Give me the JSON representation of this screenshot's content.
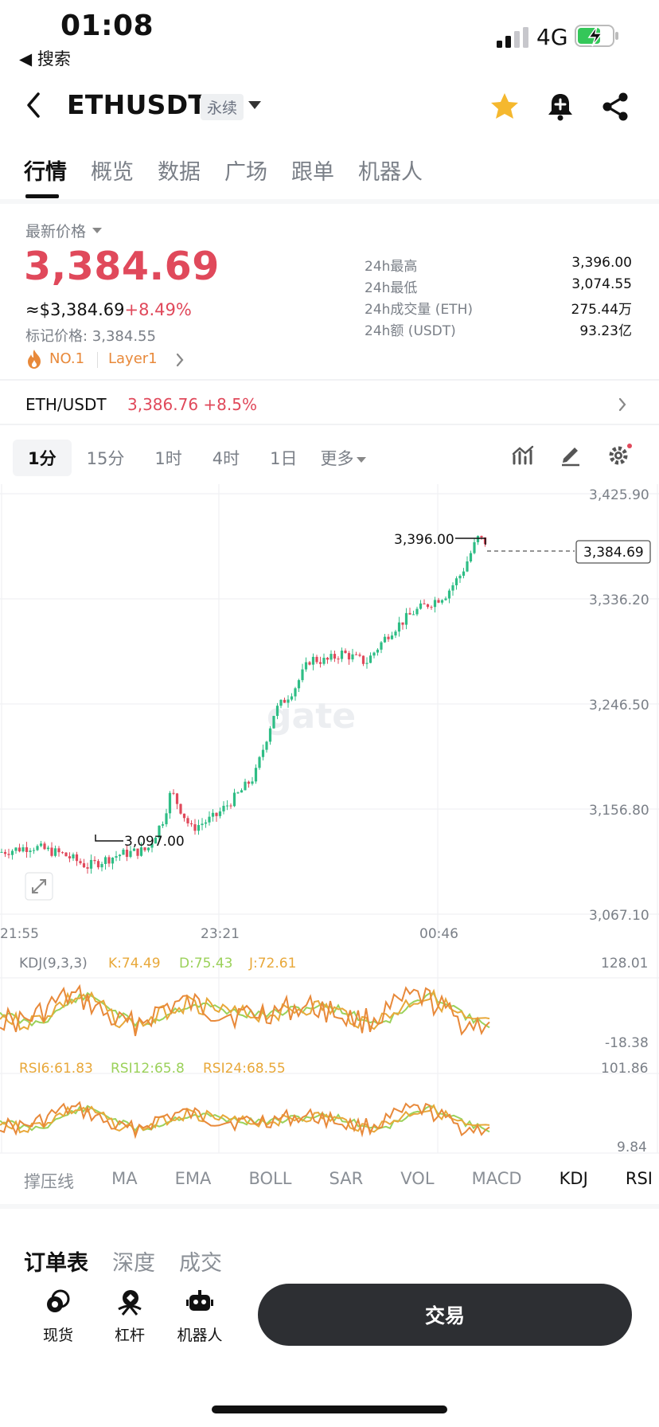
{
  "status": {
    "time": "01:08",
    "back_label": "◀ 搜索",
    "network": "4G"
  },
  "header": {
    "symbol": "ETHUSDT",
    "badge": "永续",
    "icons": [
      "back-icon",
      "star-icon",
      "bell-plus-icon",
      "share-icon"
    ]
  },
  "tabs": [
    "行情",
    "概览",
    "数据",
    "广场",
    "跟单",
    "机器人"
  ],
  "price": {
    "label": "最新价格",
    "last": "3,384.69",
    "usd": "≈$3,384.69",
    "change_pct": "+8.49%",
    "mark": "标记价格: 3,384.55",
    "rank": "NO.1",
    "tag": "Layer1"
  },
  "stats": [
    {
      "k": "24h最高",
      "v": "3,396.00"
    },
    {
      "k": "24h最低",
      "v": "3,074.55"
    },
    {
      "k": "24h成交量 (ETH)",
      "v": "275.44万"
    },
    {
      "k": "24h额 (USDT)",
      "v": "93.23亿"
    }
  ],
  "spot": {
    "pair": "ETH/USDT",
    "price": "3,386.76",
    "change": "+8.5%"
  },
  "timeframes": [
    "1分",
    "15分",
    "1时",
    "4时",
    "1日"
  ],
  "timeframe_more": "更多",
  "chart": {
    "price_axis": [
      "3,425.90",
      "3,336.20",
      "3,246.50",
      "3,156.80",
      "3,067.10"
    ],
    "time_axis": [
      "21:55",
      "23:21",
      "00:46"
    ],
    "high_label": "3,396.00",
    "low_label": "3,097.00",
    "current_label": "3,384.69",
    "kdj_label": "KDJ(9,3,3)",
    "kdj_k": "K:74.49",
    "kdj_d": "D:75.43",
    "kdj_j": "J:72.61",
    "kdj_axis": [
      "128.01",
      "-18.38"
    ],
    "rsi6": "RSI6:61.83",
    "rsi12": "RSI12:65.8",
    "rsi24": "RSI24:68.55",
    "rsi_axis": [
      "101.86",
      "9.84"
    ],
    "colors": {
      "up": "#2ebd85",
      "down": "#e0495b",
      "k": "#e8a83a",
      "d": "#9bd15a",
      "j": "#e8893a"
    }
  },
  "indicators": [
    "撑压线",
    "MA",
    "EMA",
    "BOLL",
    "SAR",
    "VOL",
    "MACD",
    "KDJ",
    "RSI"
  ],
  "orderbook_tabs": [
    "订单表",
    "深度",
    "成交"
  ],
  "bottom": {
    "spot": "现货",
    "margin": "杠杆",
    "bot": "机器人",
    "trade": "交易"
  }
}
